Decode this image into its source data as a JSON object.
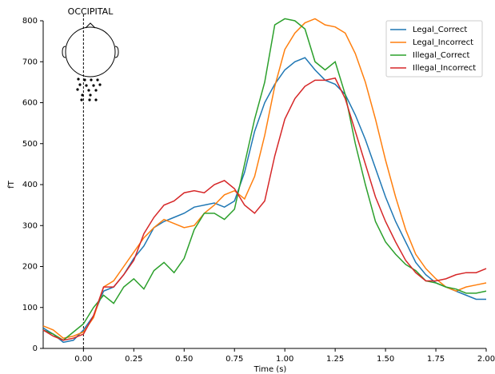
{
  "chart_data": {
    "type": "line",
    "title": "OCCIPITAL",
    "xlabel": "Time (s)",
    "ylabel": "fT",
    "x": [
      -0.2,
      -0.15,
      -0.1,
      -0.05,
      0,
      0.05,
      0.1,
      0.15,
      0.2,
      0.25,
      0.3,
      0.35,
      0.4,
      0.45,
      0.5,
      0.55,
      0.6,
      0.65,
      0.7,
      0.75,
      0.8,
      0.85,
      0.9,
      0.95,
      1.0,
      1.05,
      1.1,
      1.15,
      1.2,
      1.25,
      1.3,
      1.35,
      1.4,
      1.45,
      1.5,
      1.55,
      1.6,
      1.65,
      1.7,
      1.75,
      1.8,
      1.85,
      1.9,
      1.95,
      2.0
    ],
    "series": [
      {
        "name": "Legal_Correct",
        "color": "#1f77b4",
        "values": [
          50,
          35,
          15,
          20,
          45,
          80,
          140,
          150,
          180,
          220,
          250,
          295,
          310,
          320,
          330,
          345,
          350,
          355,
          345,
          360,
          430,
          530,
          600,
          645,
          680,
          700,
          710,
          680,
          655,
          645,
          620,
          570,
          510,
          440,
          370,
          310,
          260,
          210,
          180,
          160,
          150,
          140,
          130,
          120,
          120
        ]
      },
      {
        "name": "Legal_Incorrect",
        "color": "#ff7f0e",
        "values": [
          55,
          45,
          25,
          30,
          40,
          75,
          150,
          165,
          200,
          235,
          270,
          295,
          315,
          305,
          295,
          300,
          330,
          350,
          375,
          385,
          365,
          420,
          520,
          640,
          730,
          770,
          795,
          805,
          790,
          785,
          770,
          720,
          650,
          560,
          460,
          370,
          290,
          230,
          195,
          170,
          150,
          140,
          150,
          155,
          160
        ]
      },
      {
        "name": "Illegal_Correct",
        "color": "#2ca02c",
        "values": [
          45,
          35,
          20,
          40,
          60,
          100,
          130,
          110,
          150,
          170,
          145,
          190,
          210,
          185,
          220,
          290,
          330,
          330,
          315,
          340,
          450,
          560,
          650,
          790,
          805,
          800,
          780,
          700,
          680,
          700,
          620,
          500,
          400,
          310,
          260,
          230,
          205,
          190,
          165,
          160,
          150,
          145,
          135,
          135,
          140
        ]
      },
      {
        "name": "Illegal_Incorrect",
        "color": "#d62728",
        "values": [
          45,
          30,
          20,
          25,
          35,
          80,
          150,
          150,
          180,
          215,
          280,
          320,
          350,
          360,
          380,
          385,
          380,
          400,
          410,
          390,
          350,
          330,
          360,
          470,
          560,
          610,
          640,
          655,
          655,
          660,
          610,
          530,
          450,
          370,
          310,
          260,
          215,
          185,
          165,
          165,
          170,
          180,
          185,
          185,
          195
        ]
      }
    ],
    "xlim": [
      -0.2,
      2.0
    ],
    "ylim": [
      0,
      800
    ],
    "xticks": [
      {
        "value": 0,
        "label": "0.00"
      },
      {
        "value": 0.25,
        "label": "0.25"
      },
      {
        "value": 0.5,
        "label": "0.50"
      },
      {
        "value": 0.75,
        "label": "0.75"
      },
      {
        "value": 1.0,
        "label": "1.00"
      },
      {
        "value": 1.25,
        "label": "1.25"
      },
      {
        "value": 1.5,
        "label": "1.50"
      },
      {
        "value": 1.75,
        "label": "1.75"
      },
      {
        "value": 2.0,
        "label": "2.00"
      }
    ],
    "yticks": [
      0,
      100,
      200,
      300,
      400,
      500,
      600,
      700,
      800
    ],
    "legend": "upper right"
  }
}
